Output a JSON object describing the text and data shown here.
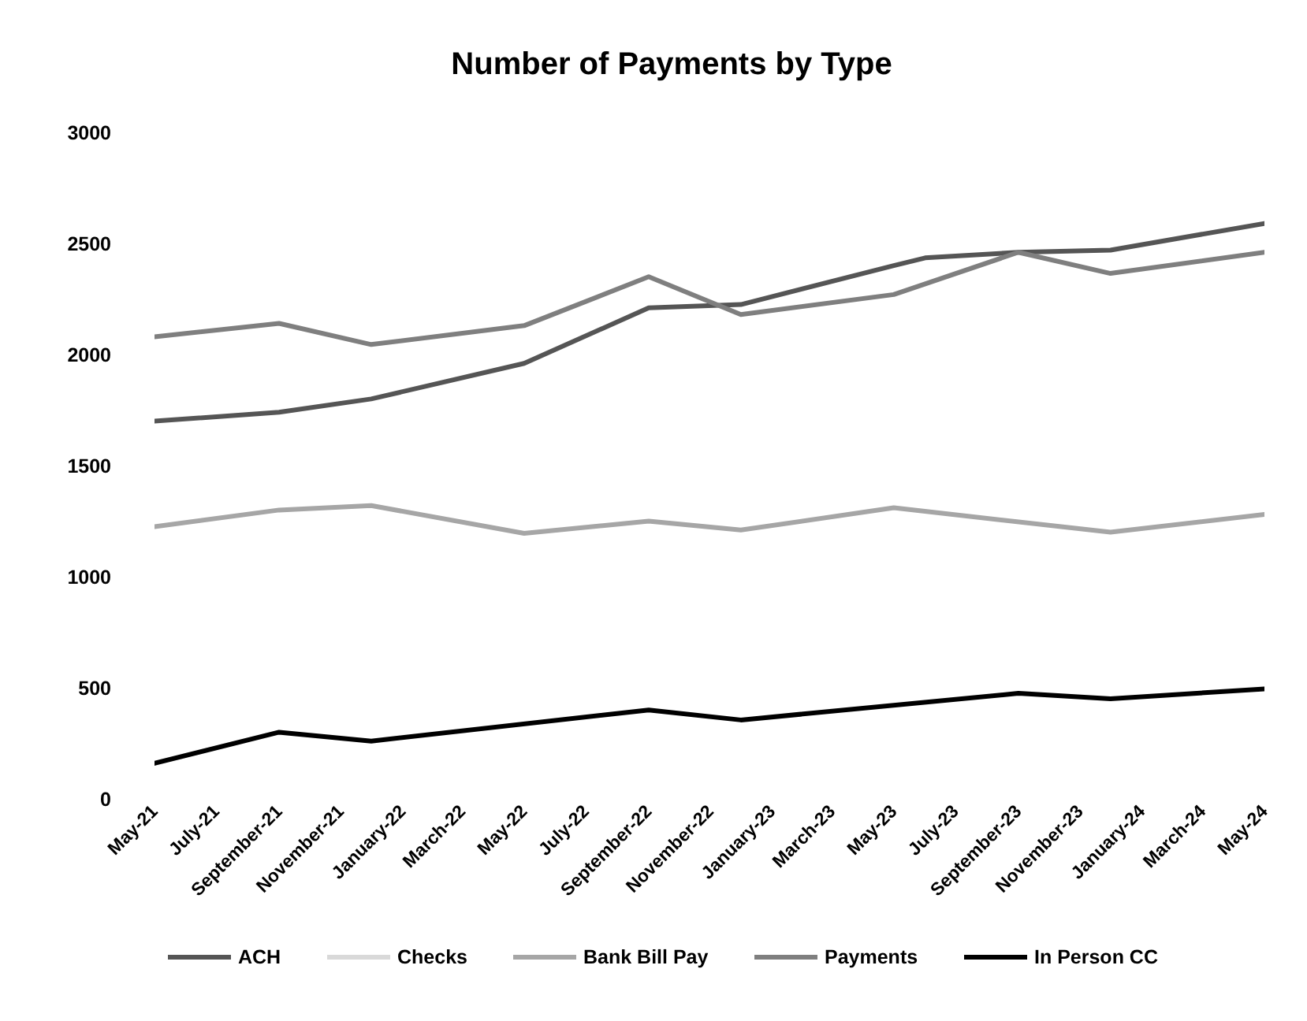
{
  "chart_data": {
    "type": "line",
    "title": "Number of Payments by Type",
    "xlim": [
      "2021-05",
      "2024-05"
    ],
    "xticks": [
      {
        "value": "2021-05",
        "label": "May-21"
      },
      {
        "value": "2021-07",
        "label": "July-21"
      },
      {
        "value": "2021-09",
        "label": "September-21"
      },
      {
        "value": "2021-11",
        "label": "November-21"
      },
      {
        "value": "2022-01",
        "label": "January-22"
      },
      {
        "value": "2022-03",
        "label": "March-22"
      },
      {
        "value": "2022-05",
        "label": "May-22"
      },
      {
        "value": "2022-07",
        "label": "July-22"
      },
      {
        "value": "2022-09",
        "label": "September-22"
      },
      {
        "value": "2022-11",
        "label": "November-22"
      },
      {
        "value": "2023-01",
        "label": "January-23"
      },
      {
        "value": "2023-03",
        "label": "March-23"
      },
      {
        "value": "2023-05",
        "label": "May-23"
      },
      {
        "value": "2023-07",
        "label": "July-23"
      },
      {
        "value": "2023-09",
        "label": "September-23"
      },
      {
        "value": "2023-11",
        "label": "November-23"
      },
      {
        "value": "2024-01",
        "label": "January-24"
      },
      {
        "value": "2024-03",
        "label": "March-24"
      },
      {
        "value": "2024-05",
        "label": "May-24"
      }
    ],
    "ylim": [
      0,
      3000
    ],
    "yticks": [
      0,
      500,
      1000,
      1500,
      2000,
      2500,
      3000
    ],
    "legend": "bottom",
    "line_style": "solid",
    "series": [
      {
        "name": "ACH",
        "color": "#555555",
        "x": [
          "2021-05",
          "2021-09",
          "2021-12",
          "2022-05",
          "2022-09",
          "2022-12",
          "2023-05",
          "2023-06",
          "2023-09",
          "2023-12",
          "2024-05"
        ],
        "values": [
          1700,
          1740,
          1800,
          1960,
          2210,
          2225,
          2400,
          2435,
          2460,
          2470,
          2590
        ]
      },
      {
        "name": "Checks",
        "color": "#d9d9d9"
      },
      {
        "name": "Bank Bill Pay",
        "color": "#a6a6a6",
        "x": [
          "2021-05",
          "2021-09",
          "2021-12",
          "2022-05",
          "2022-09",
          "2022-12",
          "2023-05",
          "2023-12",
          "2024-05"
        ],
        "values": [
          1225,
          1300,
          1320,
          1195,
          1250,
          1210,
          1310,
          1200,
          1280
        ]
      },
      {
        "name": "Payments",
        "color": "#7f7f7f",
        "x": [
          "2021-05",
          "2021-09",
          "2021-12",
          "2022-05",
          "2022-09",
          "2022-12",
          "2023-05",
          "2023-09",
          "2023-12",
          "2024-05"
        ],
        "values": [
          2080,
          2140,
          2045,
          2130,
          2350,
          2180,
          2270,
          2460,
          2365,
          2460
        ]
      },
      {
        "name": "In Person CC",
        "color": "#000000",
        "x": [
          "2021-05",
          "2021-09",
          "2021-12",
          "2022-09",
          "2022-12",
          "2023-09",
          "2023-12",
          "2024-05"
        ],
        "values": [
          160,
          300,
          260,
          400,
          355,
          475,
          450,
          495
        ]
      }
    ]
  }
}
